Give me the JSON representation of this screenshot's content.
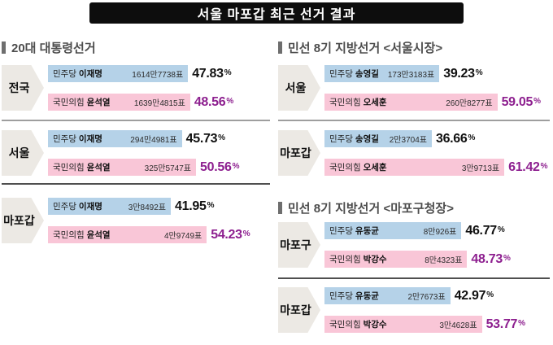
{
  "title": "서울 마포갑 최근 선거 결과",
  "labels": {
    "percent_sign": "%",
    "vote_unit": "표"
  },
  "colors": {
    "banner_bg": "#0d0d0d",
    "bar_democratic": "#b5d2e8",
    "bar_ppp": "#f9c6d7",
    "winner_percent": "#8d1f8f",
    "region_label_bg": "#ece9e4",
    "header_text": "#4d4d4d",
    "divider": "#9e9e9e"
  },
  "panels": [
    {
      "header": "20대 대통령선거",
      "sections": [
        {
          "region": "전국",
          "rows": [
            {
              "party": "민주당",
              "candidate": "이재명",
              "votes": "1614만7738표",
              "pct": 47.83,
              "pct_label": "47.83",
              "winner": false
            },
            {
              "party": "국민의힘",
              "candidate": "윤석열",
              "votes": "1639만4815표",
              "pct": 48.56,
              "pct_label": "48.56",
              "winner": true
            }
          ]
        },
        {
          "region": "서울",
          "rows": [
            {
              "party": "민주당",
              "candidate": "이재명",
              "votes": "294만4981표",
              "pct": 45.73,
              "pct_label": "45.73",
              "winner": false
            },
            {
              "party": "국민의힘",
              "candidate": "윤석열",
              "votes": "325만5747표",
              "pct": 50.56,
              "pct_label": "50.56",
              "winner": true
            }
          ]
        },
        {
          "region": "마포갑",
          "rows": [
            {
              "party": "민주당",
              "candidate": "이재명",
              "votes": "3만8492표",
              "pct": 41.95,
              "pct_label": "41.95",
              "winner": false
            },
            {
              "party": "국민의힘",
              "candidate": "윤석열",
              "votes": "4만9749표",
              "pct": 54.23,
              "pct_label": "54.23",
              "winner": true
            }
          ]
        }
      ]
    },
    {
      "header": "민선 8기 지방선거 <서울시장>",
      "sections": [
        {
          "region": "서울",
          "rows": [
            {
              "party": "민주당",
              "candidate": "송영길",
              "votes": "173만3183표",
              "pct": 39.23,
              "pct_label": "39.23",
              "winner": false
            },
            {
              "party": "국민의힘",
              "candidate": "오세훈",
              "votes": "260만8277표",
              "pct": 59.05,
              "pct_label": "59.05",
              "winner": true
            }
          ]
        },
        {
          "region": "마포갑",
          "rows": [
            {
              "party": "민주당",
              "candidate": "송영길",
              "votes": "2만3704표",
              "pct": 36.66,
              "pct_label": "36.66",
              "winner": false
            },
            {
              "party": "국민의힘",
              "candidate": "오세훈",
              "votes": "3만9713표",
              "pct": 61.42,
              "pct_label": "61.42",
              "winner": true
            }
          ]
        }
      ]
    },
    {
      "header": "민선 8기 지방선거 <마포구청장>",
      "sections": [
        {
          "region": "마포구",
          "rows": [
            {
              "party": "민주당",
              "candidate": "유동균",
              "votes": "8만926표",
              "pct": 46.77,
              "pct_label": "46.77",
              "winner": false
            },
            {
              "party": "국민의힘",
              "candidate": "박강수",
              "votes": "8만4323표",
              "pct": 48.73,
              "pct_label": "48.73",
              "winner": true
            }
          ]
        },
        {
          "region": "마포갑",
          "rows": [
            {
              "party": "민주당",
              "candidate": "유동균",
              "votes": "2만7673표",
              "pct": 42.97,
              "pct_label": "42.97",
              "winner": false
            },
            {
              "party": "국민의힘",
              "candidate": "박강수",
              "votes": "3만4628표",
              "pct": 53.77,
              "pct_label": "53.77",
              "winner": true
            }
          ]
        }
      ]
    }
  ],
  "chart_data": [
    {
      "type": "bar",
      "title": "20대 대통령선거",
      "unit": "%",
      "categories": [
        "전국",
        "서울",
        "마포갑"
      ],
      "series": [
        {
          "name": "민주당 이재명",
          "values": [
            47.83,
            45.73,
            41.95
          ],
          "votes": [
            "1614만7738표",
            "294만4981표",
            "3만8492표"
          ],
          "color": "#b5d2e8"
        },
        {
          "name": "국민의힘 윤석열",
          "values": [
            48.56,
            50.56,
            54.23
          ],
          "votes": [
            "1639만4815표",
            "325만5747표",
            "4만9749표"
          ],
          "color": "#f9c6d7"
        }
      ]
    },
    {
      "type": "bar",
      "title": "민선 8기 지방선거 <서울시장>",
      "unit": "%",
      "categories": [
        "서울",
        "마포갑"
      ],
      "series": [
        {
          "name": "민주당 송영길",
          "values": [
            39.23,
            36.66
          ],
          "votes": [
            "173만3183표",
            "2만3704표"
          ],
          "color": "#b5d2e8"
        },
        {
          "name": "국민의힘 오세훈",
          "values": [
            59.05,
            61.42
          ],
          "votes": [
            "260만8277표",
            "3만9713표"
          ],
          "color": "#f9c6d7"
        }
      ]
    },
    {
      "type": "bar",
      "title": "민선 8기 지방선거 <마포구청장>",
      "unit": "%",
      "categories": [
        "마포구",
        "마포갑"
      ],
      "series": [
        {
          "name": "민주당 유동균",
          "values": [
            46.77,
            42.97
          ],
          "votes": [
            "8만926표",
            "2만7673표"
          ],
          "color": "#b5d2e8"
        },
        {
          "name": "국민의힘 박강수",
          "values": [
            48.73,
            53.77
          ],
          "votes": [
            "8만4323표",
            "3만4628표"
          ],
          "color": "#f9c6d7"
        }
      ]
    }
  ]
}
